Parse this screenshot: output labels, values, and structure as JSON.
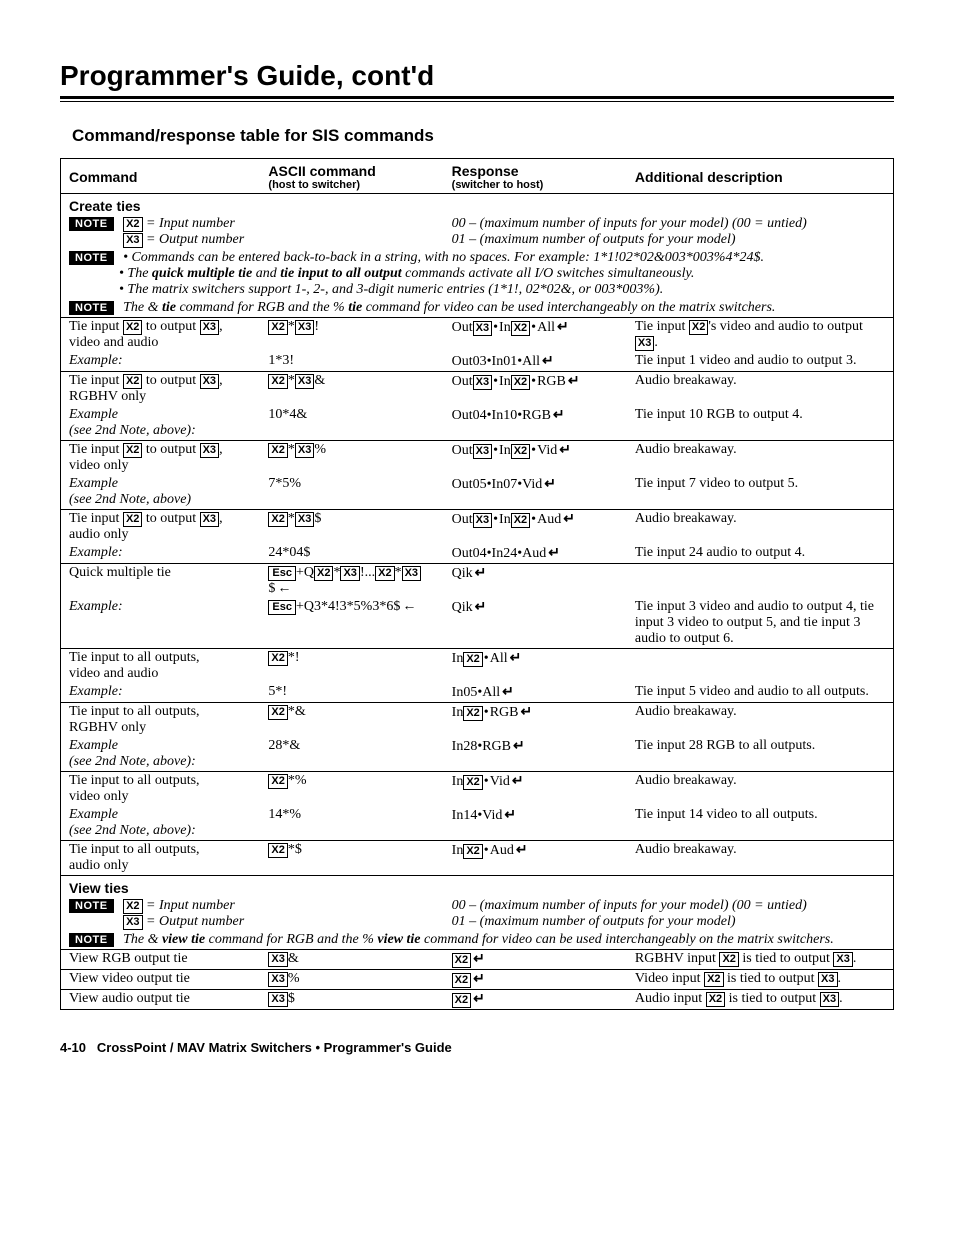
{
  "page": {
    "title": "Programmer's Guide, cont'd",
    "section": "Command/response table for SIS commands",
    "footer_page": "4-10",
    "footer_text": "CrossPoint / MAV Matrix Switchers • Programmer's Guide"
  },
  "headers": {
    "c1": "Command",
    "c2": "ASCII command",
    "c2s": "(host to switcher)",
    "c3": "Response",
    "c3s": "(switcher to host)",
    "c4": "Additional description"
  },
  "labels": {
    "note": "NOTE",
    "x2": "X2",
    "x3": "X3",
    "esc": "Esc",
    "input_number": " = Input number",
    "output_number": " = Output number",
    "range_in": "00 – (maximum number of inputs for your model)  (00 = untied)",
    "range_out": "01 – (maximum number of outputs for your model)"
  },
  "create_ties": {
    "heading": "Create ties",
    "note2a": "Commands can be entered back-to-back in a string, with no spaces.  For example: 1*1!02*02&003*003%4*24$.",
    "note2b_pre": "The ",
    "note2b_b1": "quick multiple tie",
    "note2b_mid": " and ",
    "note2b_b2": "tie input to all output",
    "note2b_post": " commands activate all I/O switches simultaneously.",
    "note2c": "The matrix switchers support 1-, 2-, and 3-digit numeric entries (1*1!, 02*02&, or 003*003%).",
    "note3_pre": "The & ",
    "note3_b1": "tie",
    "note3_mid": " command for RGB and the % ",
    "note3_b2": "tie",
    "note3_post": " command for video can be used interchangeably on the matrix switchers."
  },
  "rows": [
    {
      "cmd_pre": "Tie input ",
      "cmd_mid": " to output ",
      "cmd_post": ",",
      "cmd_line2": "video and audio",
      "ascii_suffix": "!",
      "resp_pre": "Out",
      "resp_mid": "In",
      "resp_type": "All",
      "desc_pre": "Tie input ",
      "desc_mid": "'s video and audio to output ",
      "desc_post": "."
    },
    {
      "ex": "Example:",
      "ascii": "1*3!",
      "resp": "Out03•In01•All",
      "desc": "Tie input 1 video and audio to output 3."
    },
    {
      "cmd_pre": "Tie input ",
      "cmd_mid": " to output ",
      "cmd_post": ",",
      "cmd_line2": "RGBHV only",
      "ascii_suffix": "&",
      "resp_pre": "Out",
      "resp_mid": "In",
      "resp_type": "RGB",
      "desc": "Audio breakaway."
    },
    {
      "ex": "Example",
      "ex2": "(see 2nd Note, above):",
      "ascii": "10*4&",
      "resp": "Out04•In10•RGB",
      "desc": "Tie input 10 RGB to output 4."
    },
    {
      "cmd_pre": "Tie input ",
      "cmd_mid": " to output ",
      "cmd_post": ",",
      "cmd_line2": "video only",
      "ascii_suffix": "%",
      "resp_pre": "Out",
      "resp_mid": "In",
      "resp_type": "Vid",
      "desc": "Audio breakaway."
    },
    {
      "ex": "Example",
      "ex2": "(see 2nd Note, above)",
      "ascii": "7*5%",
      "resp": "Out05•In07•Vid",
      "desc": "Tie input 7 video to output 5."
    },
    {
      "cmd_pre": "Tie input ",
      "cmd_mid": " to output ",
      "cmd_post": ",",
      "cmd_line2": "audio only",
      "ascii_suffix": "$",
      "resp_pre": "Out",
      "resp_mid": "In",
      "resp_type": "Aud",
      "desc": "Audio breakaway."
    },
    {
      "ex": "Example:",
      "ascii": "24*04$",
      "resp": "Out04•In24•Aud",
      "desc": "Tie input 24 audio to output 4."
    },
    {
      "cmd": "Quick multiple tie",
      "qik": true,
      "resp": "Qik",
      "desc": ""
    },
    {
      "ex": "Example:",
      "qik_ex": "+Q3*4!3*5%3*6$",
      "resp": "Qik",
      "desc": "Tie input 3 video and audio to output 4, tie input 3 video to output 5, and tie input 3 audio to output 6."
    },
    {
      "cmd": "Tie input to all outputs,",
      "cmd_line2": "video and audio",
      "ascii_all": "*!",
      "resp_in": "In",
      "resp_type": "All",
      "desc": ""
    },
    {
      "ex": "Example:",
      "ascii": "5*!",
      "resp": "In05•All",
      "desc": "Tie input 5 video and audio to all outputs."
    },
    {
      "cmd": "Tie input to all outputs,",
      "cmd_line2": "RGBHV only",
      "ascii_all": "*&",
      "resp_in": "In",
      "resp_type": "RGB",
      "desc": "Audio breakaway."
    },
    {
      "ex": "Example",
      "ex2": "(see 2nd Note, above):",
      "ascii": "28*&",
      "resp": "In28•RGB",
      "desc": "Tie input 28 RGB to all outputs."
    },
    {
      "cmd": "Tie input to all outputs,",
      "cmd_line2": "video only",
      "ascii_all": "*%",
      "resp_in": "In",
      "resp_type": "Vid",
      "desc": "Audio breakaway."
    },
    {
      "ex": "Example",
      "ex2": "(see 2nd Note, above):",
      "ascii": "14*%",
      "resp": "In14•Vid",
      "desc": "Tie input 14 video to all outputs."
    },
    {
      "cmd": "Tie input to all outputs,",
      "cmd_line2": "audio only",
      "ascii_all": "*$",
      "resp_in": "In",
      "resp_type": "Aud",
      "desc": "Audio breakaway."
    }
  ],
  "view_ties": {
    "heading": "View ties",
    "note2_pre": "The & ",
    "note2_b1": "view tie",
    "note2_mid": " command for RGB and the % ",
    "note2_b2": "view tie",
    "note2_post": " command for video can be used interchangeably on the matrix switchers."
  },
  "vrows": [
    {
      "cmd": "View RGB output tie",
      "suf": "&",
      "desc_pre": "RGBHV input ",
      "desc_mid": " is tied to output ",
      "desc_post": "."
    },
    {
      "cmd": "View video output tie",
      "suf": "%",
      "desc_pre": "Video input ",
      "desc_mid": " is tied to output ",
      "desc_post": "."
    },
    {
      "cmd": "View audio output tie",
      "suf": "$",
      "desc_pre": "Audio input ",
      "desc_mid": " is tied to output ",
      "desc_post": "."
    }
  ]
}
